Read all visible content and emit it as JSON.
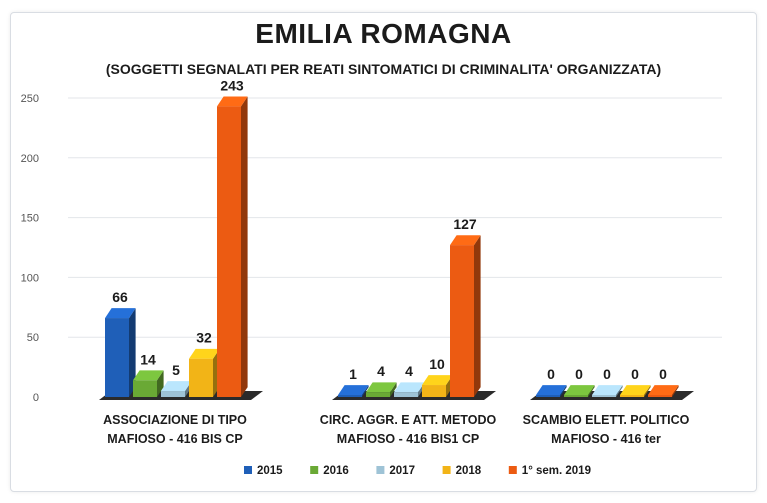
{
  "chart_data": {
    "type": "bar",
    "title": "EMILIA ROMAGNA",
    "subtitle": "(SOGGETTI SEGNALATI PER REATI SINTOMATICI DI CRIMINALITA' ORGANIZZATA)",
    "categories": [
      [
        "ASSOCIAZIONE DI TIPO",
        "MAFIOSO - 416 BIS CP"
      ],
      [
        "CIRC. AGGR. E ATT. METODO",
        "MAFIOSO - 416 BIS1 CP"
      ],
      [
        "SCAMBIO ELETT. POLITICO",
        "MAFIOSO - 416 ter"
      ]
    ],
    "series": [
      {
        "name": "2015",
        "color": "#1f5fb8",
        "values": [
          66,
          1,
          0
        ]
      },
      {
        "name": "2016",
        "color": "#6aa935",
        "values": [
          14,
          4,
          0
        ]
      },
      {
        "name": "2017",
        "color": "#9ec3d6",
        "values": [
          5,
          4,
          0
        ]
      },
      {
        "name": "2018",
        "color": "#f2b417",
        "values": [
          32,
          10,
          0
        ]
      },
      {
        "name": "1° sem. 2019",
        "color": "#ec5b12",
        "values": [
          243,
          127,
          0
        ]
      }
    ],
    "yticks": [
      0,
      50,
      100,
      150,
      200,
      250
    ],
    "ylim": [
      0,
      250
    ],
    "grid": true,
    "legend": "bottom"
  }
}
